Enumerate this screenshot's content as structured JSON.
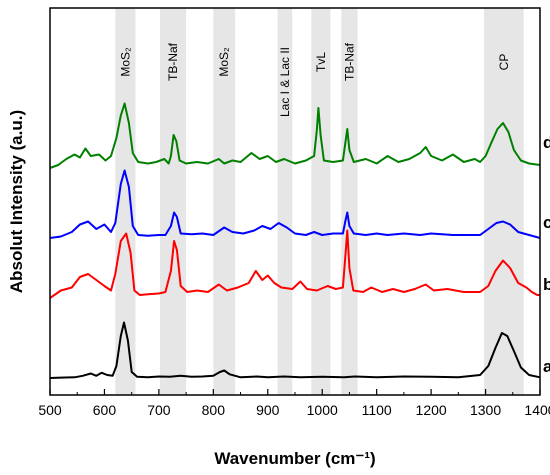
{
  "chart_data": {
    "type": "line",
    "xlabel": "Wavenumber (cm⁻¹)",
    "ylabel": "Absolut Intensity (a.u.)",
    "xlim": [
      500,
      1400
    ],
    "x_ticks": [
      500,
      600,
      700,
      800,
      900,
      1000,
      1100,
      1200,
      1300,
      1400
    ],
    "y_ticks": "none",
    "grid": false,
    "bands": [
      {
        "label": "MoS₂",
        "from": 620,
        "to": 657
      },
      {
        "label": "TB-Naf",
        "from": 702,
        "to": 750
      },
      {
        "label": "MoS₂",
        "from": 800,
        "to": 840
      },
      {
        "label": "Lac I & Lac II",
        "from": 918,
        "to": 945
      },
      {
        "label": "TvL",
        "from": 980,
        "to": 1015
      },
      {
        "label": "TB-Naf",
        "from": 1035,
        "to": 1065
      },
      {
        "label": "CP",
        "from": 1297,
        "to": 1370
      }
    ],
    "series": [
      {
        "name": "a)",
        "color": "#000000",
        "baseline": 0,
        "points": [
          [
            500,
            0
          ],
          [
            520,
            0.3
          ],
          [
            545,
            0.5
          ],
          [
            560,
            1.5
          ],
          [
            575,
            3
          ],
          [
            585,
            1.5
          ],
          [
            595,
            3.5
          ],
          [
            605,
            2
          ],
          [
            615,
            1.5
          ],
          [
            622,
            8
          ],
          [
            630,
            28
          ],
          [
            636,
            37
          ],
          [
            643,
            25
          ],
          [
            650,
            4
          ],
          [
            660,
            0.8
          ],
          [
            680,
            0.5
          ],
          [
            700,
            1
          ],
          [
            720,
            0.8
          ],
          [
            740,
            1.5
          ],
          [
            760,
            0.8
          ],
          [
            780,
            1
          ],
          [
            800,
            1.5
          ],
          [
            812,
            4
          ],
          [
            820,
            5
          ],
          [
            830,
            2.5
          ],
          [
            850,
            0.5
          ],
          [
            880,
            1
          ],
          [
            900,
            0.5
          ],
          [
            930,
            1
          ],
          [
            960,
            0.5
          ],
          [
            1000,
            0.8
          ],
          [
            1040,
            0.5
          ],
          [
            1060,
            1
          ],
          [
            1100,
            0.5
          ],
          [
            1150,
            1
          ],
          [
            1200,
            0.8
          ],
          [
            1250,
            0.5
          ],
          [
            1290,
            2
          ],
          [
            1305,
            8
          ],
          [
            1318,
            20
          ],
          [
            1330,
            30
          ],
          [
            1340,
            28
          ],
          [
            1352,
            18
          ],
          [
            1365,
            7
          ],
          [
            1380,
            2
          ],
          [
            1400,
            0.5
          ]
        ]
      },
      {
        "name": "b)",
        "color": "#ff0000",
        "baseline": 0,
        "points": [
          [
            500,
            0
          ],
          [
            520,
            5
          ],
          [
            540,
            7
          ],
          [
            555,
            14
          ],
          [
            570,
            16
          ],
          [
            585,
            12
          ],
          [
            600,
            8
          ],
          [
            612,
            5
          ],
          [
            620,
            16
          ],
          [
            630,
            38
          ],
          [
            640,
            43
          ],
          [
            648,
            30
          ],
          [
            655,
            5
          ],
          [
            665,
            2
          ],
          [
            680,
            2.5
          ],
          [
            700,
            3
          ],
          [
            712,
            4
          ],
          [
            722,
            18
          ],
          [
            728,
            38
          ],
          [
            733,
            32
          ],
          [
            740,
            8
          ],
          [
            752,
            4
          ],
          [
            770,
            5
          ],
          [
            790,
            4
          ],
          [
            810,
            9
          ],
          [
            825,
            5
          ],
          [
            845,
            7
          ],
          [
            865,
            10
          ],
          [
            878,
            18
          ],
          [
            890,
            12
          ],
          [
            900,
            15
          ],
          [
            912,
            10
          ],
          [
            925,
            7
          ],
          [
            945,
            6
          ],
          [
            960,
            11
          ],
          [
            972,
            6
          ],
          [
            990,
            5
          ],
          [
            1010,
            8
          ],
          [
            1025,
            6
          ],
          [
            1038,
            7
          ],
          [
            1043,
            30
          ],
          [
            1046,
            45
          ],
          [
            1050,
            20
          ],
          [
            1057,
            5
          ],
          [
            1075,
            4
          ],
          [
            1090,
            7
          ],
          [
            1110,
            4
          ],
          [
            1130,
            6
          ],
          [
            1150,
            4
          ],
          [
            1170,
            6
          ],
          [
            1190,
            9
          ],
          [
            1205,
            5
          ],
          [
            1230,
            6
          ],
          [
            1260,
            4
          ],
          [
            1290,
            4
          ],
          [
            1305,
            8
          ],
          [
            1318,
            18
          ],
          [
            1332,
            25
          ],
          [
            1345,
            20
          ],
          [
            1360,
            10
          ],
          [
            1375,
            7
          ],
          [
            1385,
            4
          ],
          [
            1395,
            2
          ],
          [
            1400,
            2
          ]
        ]
      },
      {
        "name": "c)",
        "color": "#0000ff",
        "baseline": 0,
        "points": [
          [
            500,
            0
          ],
          [
            520,
            1
          ],
          [
            540,
            4
          ],
          [
            555,
            9
          ],
          [
            570,
            11
          ],
          [
            585,
            6
          ],
          [
            600,
            9
          ],
          [
            612,
            4
          ],
          [
            620,
            10
          ],
          [
            630,
            36
          ],
          [
            637,
            45
          ],
          [
            645,
            34
          ],
          [
            652,
            8
          ],
          [
            662,
            2
          ],
          [
            680,
            1.5
          ],
          [
            700,
            2
          ],
          [
            712,
            2
          ],
          [
            722,
            8
          ],
          [
            728,
            17
          ],
          [
            733,
            14
          ],
          [
            740,
            3
          ],
          [
            760,
            2.5
          ],
          [
            780,
            3
          ],
          [
            800,
            2
          ],
          [
            820,
            7
          ],
          [
            835,
            4
          ],
          [
            855,
            3
          ],
          [
            875,
            5
          ],
          [
            890,
            8
          ],
          [
            905,
            6
          ],
          [
            920,
            10
          ],
          [
            935,
            7
          ],
          [
            950,
            3
          ],
          [
            970,
            2
          ],
          [
            985,
            4
          ],
          [
            1000,
            2
          ],
          [
            1020,
            3
          ],
          [
            1038,
            3
          ],
          [
            1043,
            12
          ],
          [
            1046,
            17
          ],
          [
            1050,
            8
          ],
          [
            1058,
            3
          ],
          [
            1080,
            2
          ],
          [
            1100,
            3
          ],
          [
            1120,
            2
          ],
          [
            1150,
            3
          ],
          [
            1180,
            2
          ],
          [
            1200,
            3
          ],
          [
            1240,
            2
          ],
          [
            1270,
            2
          ],
          [
            1290,
            2
          ],
          [
            1305,
            6
          ],
          [
            1320,
            10
          ],
          [
            1332,
            11
          ],
          [
            1345,
            9
          ],
          [
            1360,
            4
          ],
          [
            1380,
            2
          ],
          [
            1400,
            0
          ]
        ]
      },
      {
        "name": "d)",
        "color": "#008000",
        "baseline": 0,
        "points": [
          [
            500,
            0
          ],
          [
            515,
            2
          ],
          [
            530,
            6
          ],
          [
            545,
            9
          ],
          [
            555,
            7
          ],
          [
            565,
            13
          ],
          [
            575,
            8
          ],
          [
            590,
            9
          ],
          [
            602,
            5
          ],
          [
            612,
            8
          ],
          [
            622,
            20
          ],
          [
            630,
            35
          ],
          [
            637,
            43
          ],
          [
            645,
            30
          ],
          [
            652,
            10
          ],
          [
            662,
            4
          ],
          [
            680,
            3
          ],
          [
            695,
            4
          ],
          [
            710,
            6
          ],
          [
            718,
            3
          ],
          [
            722,
            8
          ],
          [
            727,
            22
          ],
          [
            732,
            18
          ],
          [
            738,
            5
          ],
          [
            750,
            3
          ],
          [
            770,
            4
          ],
          [
            790,
            3
          ],
          [
            810,
            6
          ],
          [
            820,
            3
          ],
          [
            835,
            5
          ],
          [
            850,
            4
          ],
          [
            870,
            10
          ],
          [
            885,
            6
          ],
          [
            900,
            8
          ],
          [
            915,
            4
          ],
          [
            930,
            6
          ],
          [
            950,
            3
          ],
          [
            970,
            5
          ],
          [
            985,
            8
          ],
          [
            990,
            25
          ],
          [
            993,
            40
          ],
          [
            997,
            22
          ],
          [
            1003,
            5
          ],
          [
            1020,
            4
          ],
          [
            1038,
            5
          ],
          [
            1043,
            18
          ],
          [
            1046,
            26
          ],
          [
            1050,
            12
          ],
          [
            1058,
            4
          ],
          [
            1080,
            6
          ],
          [
            1100,
            3
          ],
          [
            1120,
            8
          ],
          [
            1140,
            4
          ],
          [
            1160,
            6
          ],
          [
            1180,
            10
          ],
          [
            1190,
            14
          ],
          [
            1200,
            8
          ],
          [
            1220,
            5
          ],
          [
            1240,
            9
          ],
          [
            1260,
            4
          ],
          [
            1280,
            6
          ],
          [
            1290,
            4
          ],
          [
            1300,
            8
          ],
          [
            1312,
            18
          ],
          [
            1322,
            26
          ],
          [
            1332,
            30
          ],
          [
            1342,
            24
          ],
          [
            1352,
            12
          ],
          [
            1365,
            5
          ],
          [
            1380,
            3
          ],
          [
            1400,
            2
          ]
        ]
      }
    ]
  }
}
